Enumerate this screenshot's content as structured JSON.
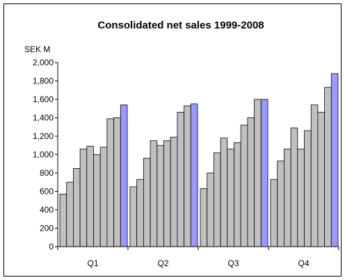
{
  "chart_data": {
    "type": "bar",
    "title": "Consolidated net sales 1999-2008",
    "ylabel": "SEK M",
    "xlabel": "",
    "ylim": [
      0,
      2000
    ],
    "yticks": [
      0,
      200,
      400,
      600,
      800,
      1000,
      1200,
      1400,
      1600,
      1800,
      2000
    ],
    "ytick_labels": [
      "0",
      "200",
      "400",
      "600",
      "800",
      "1,000",
      "1,200",
      "1,400",
      "1,600",
      "1,800",
      "2,000"
    ],
    "categories": [
      "Q1",
      "Q2",
      "Q3",
      "Q4"
    ],
    "grid": false,
    "legend": "none",
    "colors": {
      "bar": "#c0c0c0",
      "highlight": "#9999ff",
      "edge": "#000000"
    },
    "groups": [
      {
        "category": "Q1",
        "values": [
          570,
          700,
          850,
          1060,
          1090,
          1000,
          1080,
          1390,
          1400,
          1540
        ]
      },
      {
        "category": "Q2",
        "values": [
          650,
          730,
          960,
          1150,
          1100,
          1150,
          1190,
          1460,
          1530,
          1550
        ]
      },
      {
        "category": "Q3",
        "values": [
          630,
          800,
          1020,
          1180,
          1060,
          1130,
          1320,
          1400,
          1600,
          1600
        ]
      },
      {
        "category": "Q4",
        "values": [
          730,
          930,
          1060,
          1290,
          1060,
          1260,
          1540,
          1460,
          1730,
          1880
        ]
      }
    ]
  }
}
